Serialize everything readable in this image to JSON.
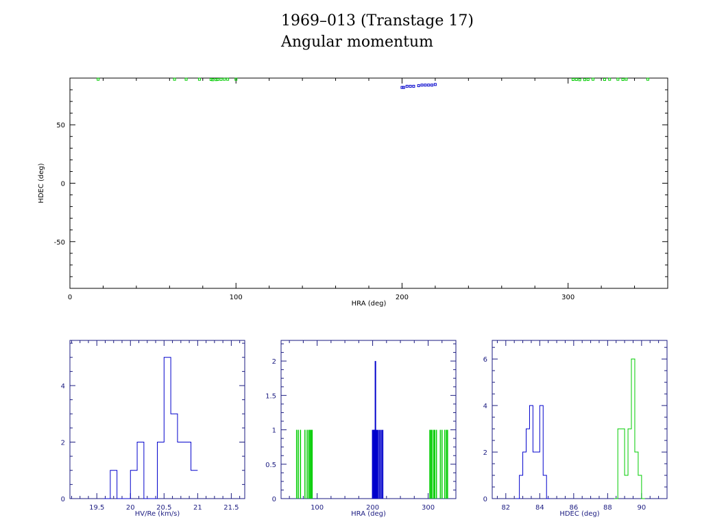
{
  "title_line1": "1969–013 (Transtage 17)",
  "title_line2": "Angular momentum",
  "colors": {
    "series_a": "#0000cc",
    "series_b": "#00cc00",
    "axis_main": "#000000",
    "axis_hist": "#1a1a80"
  },
  "chart_data": [
    {
      "type": "scatter",
      "xlabel": "HRA (deg)",
      "ylabel": "HDEC (deg)",
      "xlim": [
        0,
        360
      ],
      "ylim": [
        -90,
        90
      ],
      "xticks": [
        0,
        100,
        200,
        300
      ],
      "yticks": [
        -50,
        0,
        50
      ],
      "series": [
        {
          "points": [
            [
              200,
              82
            ],
            [
              201,
              82
            ],
            [
              203,
              83
            ],
            [
              205,
              83
            ],
            [
              207,
              83
            ],
            [
              210,
              83.5
            ],
            [
              212,
              84
            ],
            [
              214,
              84
            ],
            [
              216,
              84
            ],
            [
              218,
              84
            ],
            [
              220,
              84.5
            ]
          ]
        },
        {
          "points": [
            [
              17,
              89
            ],
            [
              63,
              89
            ],
            [
              70,
              89
            ],
            [
              78,
              89
            ],
            [
              85,
              88.8
            ],
            [
              86,
              88.6
            ],
            [
              88,
              88.7
            ],
            [
              89,
              88.8
            ],
            [
              91,
              88.9
            ],
            [
              93,
              89
            ],
            [
              95,
              89
            ],
            [
              100,
              89
            ],
            [
              303,
              88.8
            ],
            [
              305,
              88.8
            ],
            [
              307,
              88.6
            ],
            [
              310,
              88.7
            ],
            [
              312,
              88.8
            ],
            [
              315,
              89
            ],
            [
              322,
              88.8
            ],
            [
              325,
              89
            ],
            [
              330,
              89
            ],
            [
              333,
              88.8
            ],
            [
              335,
              89
            ],
            [
              348,
              89
            ]
          ]
        }
      ]
    },
    {
      "type": "bar",
      "xlabel": "HV/Re (km/s)",
      "xlim": [
        19.1,
        21.7
      ],
      "ylim": [
        0,
        5.6
      ],
      "xticks": [
        19.5,
        20,
        20.5,
        21,
        21.5
      ],
      "yticks": [
        0,
        2,
        4
      ],
      "series": [
        {
          "bins": [
            [
              19.6,
              19.7,
              0
            ],
            [
              19.7,
              19.8,
              1
            ],
            [
              19.8,
              19.9,
              0
            ],
            [
              19.9,
              20.0,
              0
            ],
            [
              20.0,
              20.1,
              1
            ],
            [
              20.1,
              20.2,
              2
            ],
            [
              20.2,
              20.3,
              0
            ],
            [
              20.3,
              20.4,
              0
            ],
            [
              20.4,
              20.5,
              2
            ],
            [
              20.5,
              20.6,
              5
            ],
            [
              20.6,
              20.7,
              3
            ],
            [
              20.7,
              20.8,
              2
            ],
            [
              20.8,
              20.9,
              2
            ],
            [
              20.9,
              21.0,
              1
            ]
          ]
        }
      ]
    },
    {
      "type": "bar",
      "xlabel": "HRA (deg)",
      "xlim": [
        35,
        350
      ],
      "ylim": [
        0,
        2.3
      ],
      "xticks": [
        100,
        200,
        300
      ],
      "yticks": [
        0,
        0.5,
        1,
        1.5,
        2
      ],
      "ytick_labels": [
        "0",
        "0.5",
        "1",
        "1.5",
        "2"
      ],
      "series": [
        {
          "spikes": [
            [
              200,
              1
            ],
            [
              201,
              1
            ],
            [
              202,
              1
            ],
            [
              203,
              1
            ],
            [
              204,
              1
            ],
            [
              205,
              2
            ],
            [
              207,
              1
            ],
            [
              209,
              1
            ],
            [
              212,
              1
            ],
            [
              215,
              1
            ],
            [
              218,
              1
            ]
          ]
        },
        {
          "spikes": [
            [
              63,
              1
            ],
            [
              66,
              1
            ],
            [
              70,
              1
            ],
            [
              78,
              1
            ],
            [
              82,
              1
            ],
            [
              85,
              1
            ],
            [
              87,
              1
            ],
            [
              89,
              1
            ],
            [
              91,
              1
            ],
            [
              303,
              1
            ],
            [
              305,
              1
            ],
            [
              307,
              1
            ],
            [
              310,
              1
            ],
            [
              312,
              1
            ],
            [
              315,
              1
            ],
            [
              322,
              1
            ],
            [
              325,
              1
            ],
            [
              330,
              1
            ],
            [
              333,
              1
            ],
            [
              335,
              1
            ]
          ]
        }
      ]
    },
    {
      "type": "bar",
      "xlabel": "HDEC (deg)",
      "xlim": [
        81.2,
        91.5
      ],
      "ylim": [
        0,
        6.8
      ],
      "xticks": [
        82,
        84,
        86,
        88,
        90
      ],
      "yticks": [
        0,
        2,
        4,
        6
      ],
      "series": [
        {
          "bins": [
            [
              82.6,
              82.8,
              0
            ],
            [
              82.8,
              83.0,
              1
            ],
            [
              83.0,
              83.2,
              2
            ],
            [
              83.2,
              83.4,
              3
            ],
            [
              83.4,
              83.6,
              4
            ],
            [
              83.6,
              83.8,
              2
            ],
            [
              83.8,
              84.0,
              2
            ],
            [
              84.0,
              84.2,
              4
            ],
            [
              84.2,
              84.4,
              1
            ],
            [
              84.4,
              84.6,
              0
            ]
          ]
        },
        {
          "bins": [
            [
              88.4,
              88.6,
              0
            ],
            [
              88.6,
              88.8,
              3
            ],
            [
              88.8,
              89.0,
              3
            ],
            [
              89.0,
              89.2,
              1
            ],
            [
              89.2,
              89.4,
              3
            ],
            [
              89.4,
              89.6,
              6
            ],
            [
              89.6,
              89.8,
              2
            ],
            [
              89.8,
              90.0,
              1
            ],
            [
              90.0,
              90.2,
              0
            ]
          ]
        }
      ]
    }
  ]
}
